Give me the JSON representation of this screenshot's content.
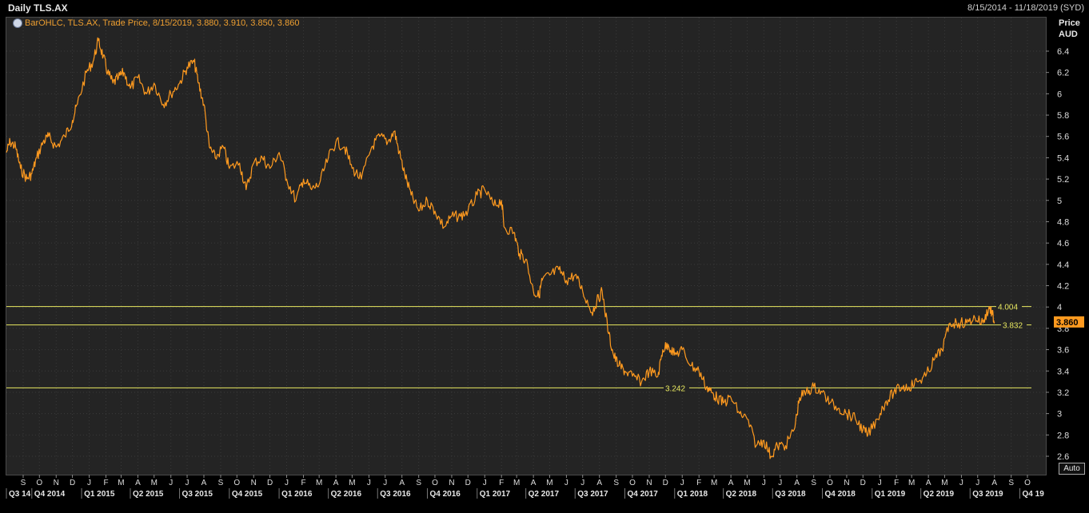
{
  "header": {
    "title": "Daily TLS.AX",
    "date_range": "8/15/2014 - 11/18/2019 (SYD)"
  },
  "legend": {
    "text": "BarOHLC, TLS.AX, Trade Price, 8/15/2019, 3.880, 3.910, 3.850, 3.860",
    "icon": "clock-icon"
  },
  "axis": {
    "title_line1": "Price",
    "title_line2": "AUD",
    "auto_label": "Auto"
  },
  "colors": {
    "background": "#000000",
    "plot_background": "#242424",
    "price_line": "#ff9a1f",
    "level_line": "#e8e860",
    "grid": "#3a3a3a",
    "last_price_badge": "#ff9a1f"
  },
  "chart_data": {
    "type": "line",
    "title": "Daily TLS.AX",
    "ylabel": "Price AUD",
    "ylim": [
      2.5,
      6.55
    ],
    "xlim": [
      "2014-08-15",
      "2019-11-18"
    ],
    "y_ticks": [
      6.4,
      6.2,
      6,
      5.8,
      5.6,
      5.4,
      5.2,
      5,
      4.8,
      4.6,
      4.4,
      4.2,
      4,
      3.8,
      3.6,
      3.4,
      3.2,
      3,
      2.8,
      2.6
    ],
    "y_tick_labels": [
      "6.4",
      "6.2",
      "6",
      "5.8",
      "5.6",
      "5.4",
      "5.2",
      "5",
      "4.8",
      "4.6",
      "4.4",
      "4.2",
      "4",
      "3.8",
      "3.6",
      "3.4",
      "3.2",
      "3",
      "2.8",
      "2.6"
    ],
    "month_ticks": [
      {
        "date": "2014-09-15",
        "label": "S"
      },
      {
        "date": "2014-10-15",
        "label": "O"
      },
      {
        "date": "2014-11-15",
        "label": "N"
      },
      {
        "date": "2014-12-15",
        "label": "D"
      },
      {
        "date": "2015-01-15",
        "label": "J"
      },
      {
        "date": "2015-02-15",
        "label": "F"
      },
      {
        "date": "2015-03-15",
        "label": "M"
      },
      {
        "date": "2015-04-15",
        "label": "A"
      },
      {
        "date": "2015-05-15",
        "label": "M"
      },
      {
        "date": "2015-06-15",
        "label": "J"
      },
      {
        "date": "2015-07-15",
        "label": "J"
      },
      {
        "date": "2015-08-15",
        "label": "A"
      },
      {
        "date": "2015-09-15",
        "label": "S"
      },
      {
        "date": "2015-10-15",
        "label": "O"
      },
      {
        "date": "2015-11-15",
        "label": "N"
      },
      {
        "date": "2015-12-15",
        "label": "D"
      },
      {
        "date": "2016-01-15",
        "label": "J"
      },
      {
        "date": "2016-02-15",
        "label": "F"
      },
      {
        "date": "2016-03-15",
        "label": "M"
      },
      {
        "date": "2016-04-15",
        "label": "A"
      },
      {
        "date": "2016-05-15",
        "label": "M"
      },
      {
        "date": "2016-06-15",
        "label": "J"
      },
      {
        "date": "2016-07-15",
        "label": "J"
      },
      {
        "date": "2016-08-15",
        "label": "A"
      },
      {
        "date": "2016-09-15",
        "label": "S"
      },
      {
        "date": "2016-10-15",
        "label": "O"
      },
      {
        "date": "2016-11-15",
        "label": "N"
      },
      {
        "date": "2016-12-15",
        "label": "D"
      },
      {
        "date": "2017-01-15",
        "label": "J"
      },
      {
        "date": "2017-02-15",
        "label": "F"
      },
      {
        "date": "2017-03-15",
        "label": "M"
      },
      {
        "date": "2017-04-15",
        "label": "A"
      },
      {
        "date": "2017-05-15",
        "label": "M"
      },
      {
        "date": "2017-06-15",
        "label": "J"
      },
      {
        "date": "2017-07-15",
        "label": "J"
      },
      {
        "date": "2017-08-15",
        "label": "A"
      },
      {
        "date": "2017-09-15",
        "label": "S"
      },
      {
        "date": "2017-10-15",
        "label": "O"
      },
      {
        "date": "2017-11-15",
        "label": "N"
      },
      {
        "date": "2017-12-15",
        "label": "D"
      },
      {
        "date": "2018-01-15",
        "label": "J"
      },
      {
        "date": "2018-02-15",
        "label": "F"
      },
      {
        "date": "2018-03-15",
        "label": "M"
      },
      {
        "date": "2018-04-15",
        "label": "A"
      },
      {
        "date": "2018-05-15",
        "label": "M"
      },
      {
        "date": "2018-06-15",
        "label": "J"
      },
      {
        "date": "2018-07-15",
        "label": "J"
      },
      {
        "date": "2018-08-15",
        "label": "A"
      },
      {
        "date": "2018-09-15",
        "label": "S"
      },
      {
        "date": "2018-10-15",
        "label": "O"
      },
      {
        "date": "2018-11-15",
        "label": "N"
      },
      {
        "date": "2018-12-15",
        "label": "D"
      },
      {
        "date": "2019-01-15",
        "label": "J"
      },
      {
        "date": "2019-02-15",
        "label": "F"
      },
      {
        "date": "2019-03-15",
        "label": "M"
      },
      {
        "date": "2019-04-15",
        "label": "A"
      },
      {
        "date": "2019-05-15",
        "label": "M"
      },
      {
        "date": "2019-06-15",
        "label": "J"
      },
      {
        "date": "2019-07-15",
        "label": "J"
      },
      {
        "date": "2019-08-15",
        "label": "A"
      },
      {
        "date": "2019-09-15",
        "label": "S"
      },
      {
        "date": "2019-10-15",
        "label": "O"
      }
    ],
    "quarter_ticks": [
      {
        "date": "2014-08-15",
        "label": "Q3 14"
      },
      {
        "date": "2014-10-01",
        "label": "Q4 2014"
      },
      {
        "date": "2015-01-01",
        "label": "Q1 2015"
      },
      {
        "date": "2015-04-01",
        "label": "Q2 2015"
      },
      {
        "date": "2015-07-01",
        "label": "Q3 2015"
      },
      {
        "date": "2015-10-01",
        "label": "Q4 2015"
      },
      {
        "date": "2016-01-01",
        "label": "Q1 2016"
      },
      {
        "date": "2016-04-01",
        "label": "Q2 2016"
      },
      {
        "date": "2016-07-01",
        "label": "Q3 2016"
      },
      {
        "date": "2016-10-01",
        "label": "Q4 2016"
      },
      {
        "date": "2017-01-01",
        "label": "Q1 2017"
      },
      {
        "date": "2017-04-01",
        "label": "Q2 2017"
      },
      {
        "date": "2017-07-01",
        "label": "Q3 2017"
      },
      {
        "date": "2017-10-01",
        "label": "Q4 2017"
      },
      {
        "date": "2018-01-01",
        "label": "Q1 2018"
      },
      {
        "date": "2018-04-01",
        "label": "Q2 2018"
      },
      {
        "date": "2018-07-01",
        "label": "Q3 2018"
      },
      {
        "date": "2018-10-01",
        "label": "Q4 2018"
      },
      {
        "date": "2019-01-01",
        "label": "Q1 2019"
      },
      {
        "date": "2019-04-01",
        "label": "Q2 2019"
      },
      {
        "date": "2019-07-01",
        "label": "Q3 2019"
      },
      {
        "date": "2019-10-01",
        "label": "Q4 19"
      }
    ],
    "horizontal_levels": [
      {
        "value": 4.004,
        "label": "4.004"
      },
      {
        "value": 3.832,
        "label": "3.832"
      },
      {
        "value": 3.242,
        "label": "3.242"
      }
    ],
    "last_price": {
      "value": 3.86,
      "label": "3.860"
    },
    "series": [
      {
        "values_x": [
          "2014-08-15",
          "2014-08-22",
          "2014-09-01",
          "2014-09-10",
          "2014-09-22",
          "2014-10-01",
          "2014-10-10",
          "2014-10-22",
          "2014-11-01",
          "2014-11-15",
          "2014-12-01",
          "2014-12-15",
          "2014-12-24",
          "2015-01-10",
          "2015-01-22",
          "2015-02-01",
          "2015-02-10",
          "2015-02-18",
          "2015-02-28",
          "2015-03-10",
          "2015-03-20",
          "2015-04-01",
          "2015-04-15",
          "2015-05-01",
          "2015-05-15",
          "2015-06-01",
          "2015-06-15",
          "2015-07-01",
          "2015-07-15",
          "2015-07-28",
          "2015-08-05",
          "2015-08-15",
          "2015-08-25",
          "2015-09-05",
          "2015-09-20",
          "2015-10-01",
          "2015-10-20",
          "2015-11-01",
          "2015-11-15",
          "2015-12-01",
          "2015-12-15",
          "2016-01-01",
          "2016-01-15",
          "2016-02-01",
          "2016-02-15",
          "2016-03-01",
          "2016-03-15",
          "2016-04-01",
          "2016-04-15",
          "2016-05-01",
          "2016-05-15",
          "2016-06-01",
          "2016-06-20",
          "2016-07-05",
          "2016-07-20",
          "2016-08-01",
          "2016-08-10",
          "2016-08-20",
          "2016-09-01",
          "2016-09-15",
          "2016-10-01",
          "2016-10-15",
          "2016-11-01",
          "2016-11-15",
          "2016-12-01",
          "2016-12-15",
          "2017-01-01",
          "2017-01-15",
          "2017-02-01",
          "2017-02-15",
          "2017-02-20",
          "2017-03-10",
          "2017-03-20",
          "2017-04-01",
          "2017-04-15",
          "2017-04-25",
          "2017-05-01",
          "2017-05-15",
          "2017-06-01",
          "2017-06-15",
          "2017-07-01",
          "2017-07-15",
          "2017-08-01",
          "2017-08-10",
          "2017-08-20",
          "2017-09-01",
          "2017-09-10",
          "2017-09-20",
          "2017-10-01",
          "2017-10-15",
          "2017-11-01",
          "2017-11-15",
          "2017-12-01",
          "2017-12-10",
          "2017-12-20",
          "2018-01-01",
          "2018-01-15",
          "2018-02-01",
          "2018-02-15",
          "2018-03-01",
          "2018-03-10",
          "2018-03-20",
          "2018-04-01",
          "2018-04-15",
          "2018-05-01",
          "2018-05-15",
          "2018-06-01",
          "2018-06-15",
          "2018-06-28",
          "2018-07-10",
          "2018-07-25",
          "2018-08-10",
          "2018-08-20",
          "2018-09-01",
          "2018-09-15",
          "2018-10-01",
          "2018-10-15",
          "2018-11-01",
          "2018-11-15",
          "2018-12-01",
          "2018-12-15",
          "2018-12-24",
          "2019-01-10",
          "2019-01-25",
          "2019-02-10",
          "2019-02-25",
          "2019-03-10",
          "2019-03-25",
          "2019-04-10",
          "2019-04-25",
          "2019-05-10",
          "2019-05-25",
          "2019-06-10",
          "2019-06-25",
          "2019-07-10",
          "2019-07-25",
          "2019-08-05",
          "2019-08-10",
          "2019-08-15"
        ],
        "values": [
          5.45,
          5.55,
          5.5,
          5.3,
          5.2,
          5.25,
          5.4,
          5.55,
          5.6,
          5.5,
          5.6,
          5.75,
          5.9,
          6.2,
          6.3,
          6.5,
          6.35,
          6.2,
          6.1,
          6.15,
          6.2,
          6.05,
          6.15,
          6.0,
          6.1,
          5.9,
          6.0,
          6.1,
          6.25,
          6.3,
          6.1,
          5.9,
          5.5,
          5.4,
          5.5,
          5.3,
          5.35,
          5.1,
          5.35,
          5.4,
          5.3,
          5.45,
          5.2,
          5.0,
          5.2,
          5.1,
          5.15,
          5.4,
          5.55,
          5.5,
          5.3,
          5.2,
          5.5,
          5.6,
          5.55,
          5.65,
          5.45,
          5.25,
          5.05,
          4.9,
          5.0,
          4.9,
          4.75,
          4.85,
          4.85,
          4.9,
          5.05,
          5.1,
          4.95,
          5.0,
          4.75,
          4.7,
          4.5,
          4.45,
          4.15,
          4.1,
          4.25,
          4.3,
          4.35,
          4.25,
          4.3,
          4.15,
          3.95,
          4.05,
          4.15,
          3.75,
          3.55,
          3.45,
          3.4,
          3.35,
          3.3,
          3.4,
          3.35,
          3.6,
          3.65,
          3.55,
          3.6,
          3.45,
          3.4,
          3.25,
          3.2,
          3.15,
          3.1,
          3.15,
          3.0,
          2.95,
          2.7,
          2.75,
          2.6,
          2.7,
          2.7,
          2.85,
          3.15,
          3.2,
          3.25,
          3.2,
          3.1,
          3.05,
          3.0,
          2.95,
          2.85,
          2.8,
          2.95,
          3.1,
          3.2,
          3.25,
          3.25,
          3.3,
          3.35,
          3.5,
          3.6,
          3.85,
          3.85,
          3.85,
          3.9,
          3.85,
          4.0,
          3.95,
          3.86
        ]
      }
    ]
  }
}
